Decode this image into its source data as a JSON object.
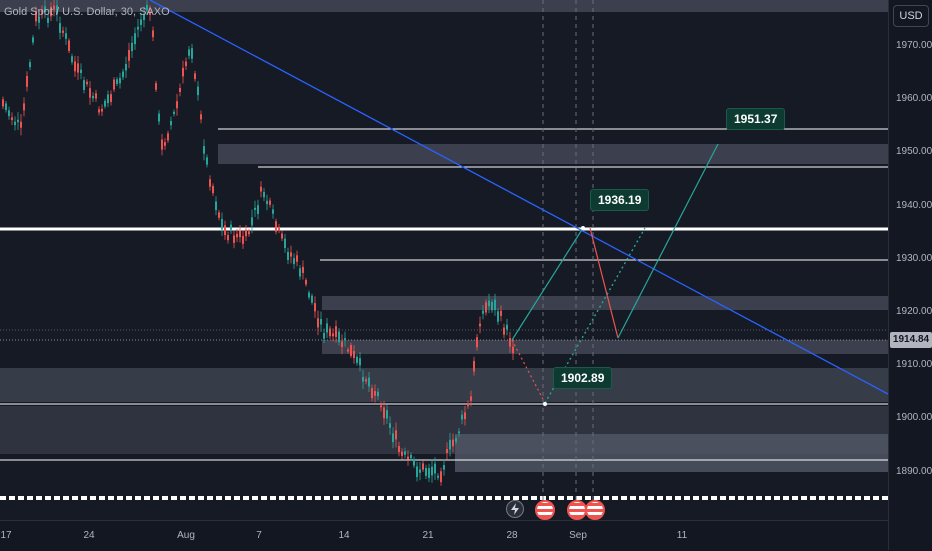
{
  "header": {
    "symbol_line": "Gold Spot / U.S. Dollar, 30, SAXO"
  },
  "price_axis": {
    "currency_label": "USD",
    "ticks": [
      "1970.00",
      "1960.00",
      "1950.00",
      "1940.00",
      "1930.00",
      "1920.00",
      "1910.00",
      "1900.00",
      "1890.00"
    ],
    "current_price": "1914.84"
  },
  "time_axis": {
    "ticks": [
      "17",
      "24",
      "Aug",
      "7",
      "14",
      "21",
      "28",
      "Sep",
      "11"
    ]
  },
  "annotations": {
    "target_high": "1951.37",
    "target_mid": "1936.19",
    "target_low": "1902.89"
  },
  "events": {
    "flash_icon": "lightning-icon",
    "flag_icon": "us-flag-icon"
  },
  "colors": {
    "bull": "#26a69a",
    "bear": "#ef5350",
    "trendline": "#2962ff",
    "zone": "#4a4f5e",
    "label_bg": "#0e3b31",
    "level_line": "#ffffff"
  }
}
